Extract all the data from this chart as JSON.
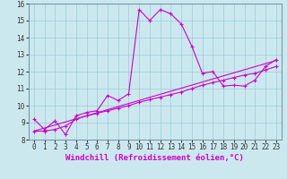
{
  "xlabel": "Windchill (Refroidissement éolien,°C)",
  "xlim": [
    -0.5,
    23.5
  ],
  "ylim": [
    8,
    16
  ],
  "yticks": [
    8,
    9,
    10,
    11,
    12,
    13,
    14,
    15,
    16
  ],
  "xticks": [
    0,
    1,
    2,
    3,
    4,
    5,
    6,
    7,
    8,
    9,
    10,
    11,
    12,
    13,
    14,
    15,
    16,
    17,
    18,
    19,
    20,
    21,
    22,
    23
  ],
  "background_color": "#cce8ef",
  "grid_color": "#99ccd9",
  "line_color": "#cc00cc",
  "line1_x": [
    0,
    1,
    2,
    3,
    4,
    5,
    6,
    7,
    8,
    9,
    10,
    11,
    12,
    13,
    14,
    15,
    16,
    17,
    18,
    19,
    20,
    21,
    22,
    23
  ],
  "line1_y": [
    9.2,
    8.6,
    9.1,
    8.3,
    9.4,
    9.6,
    9.7,
    10.6,
    10.3,
    10.7,
    15.65,
    15.0,
    15.65,
    15.4,
    14.8,
    13.5,
    11.9,
    12.0,
    11.15,
    11.2,
    11.15,
    11.5,
    12.3,
    12.7
  ],
  "line2_x": [
    0,
    1,
    2,
    3,
    4,
    5,
    6,
    7,
    8,
    9,
    10,
    11,
    12,
    13,
    14,
    15,
    16,
    17,
    18,
    19,
    20,
    21,
    22,
    23
  ],
  "line2_y": [
    8.5,
    8.5,
    8.6,
    8.8,
    9.2,
    9.4,
    9.55,
    9.7,
    9.85,
    10.0,
    10.2,
    10.35,
    10.5,
    10.65,
    10.8,
    11.0,
    11.2,
    11.35,
    11.5,
    11.65,
    11.8,
    11.9,
    12.1,
    12.3
  ],
  "line3_x": [
    0,
    23
  ],
  "line3_y": [
    8.5,
    12.65
  ],
  "tick_fontsize": 5.5,
  "label_fontsize": 6.5,
  "title_fontsize": 6
}
